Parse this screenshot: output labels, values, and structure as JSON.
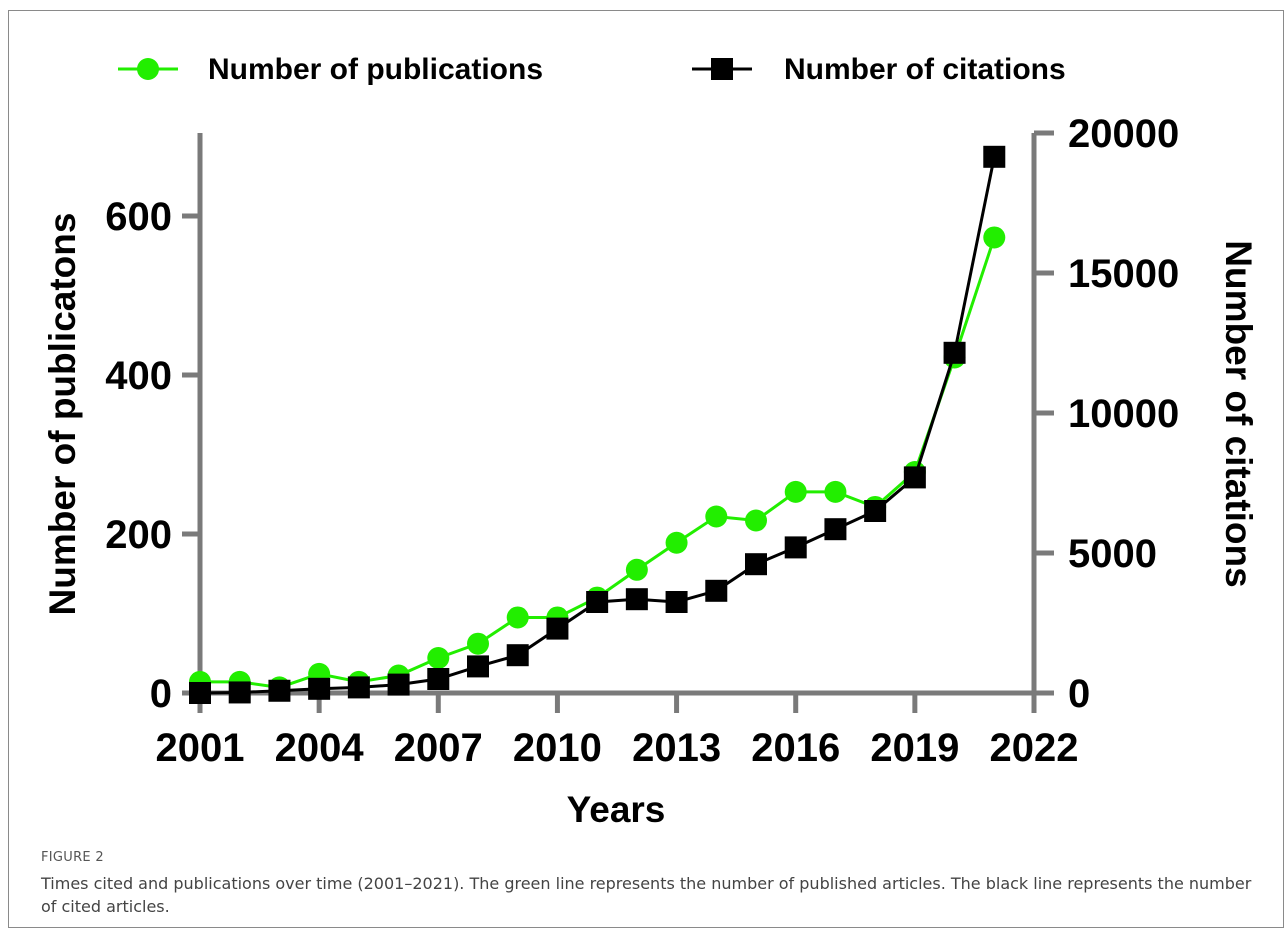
{
  "figure": {
    "label": "FIGURE 2",
    "caption": "Times cited and publications over time (2001–2021). The green line represents the number of published articles. The black line represents the number of cited articles."
  },
  "chart_data": {
    "type": "line",
    "title": "",
    "xlabel": "Years",
    "ylabel": "Number of  publicatons",
    "y2label": "Number of citations",
    "x": [
      2001,
      2002,
      2003,
      2004,
      2005,
      2006,
      2007,
      2008,
      2009,
      2010,
      2011,
      2012,
      2013,
      2014,
      2015,
      2016,
      2017,
      2018,
      2019,
      2020,
      2021
    ],
    "xlim": [
      2001,
      2022
    ],
    "xticks": [
      "2001",
      "2004",
      "2007",
      "2010",
      "2013",
      "2016",
      "2019",
      "2022"
    ],
    "ylim": [
      0,
      700
    ],
    "yticks": [
      "0",
      "200",
      "400",
      "600"
    ],
    "y2lim": [
      0,
      20000
    ],
    "y2ticks": [
      "0",
      "5000",
      "10000",
      "15000",
      "20000"
    ],
    "legend_position": "top",
    "grid": false,
    "series": [
      {
        "name": "Number of  publications",
        "axis": "left",
        "color": "#22ee00",
        "marker": "circle",
        "values": [
          14,
          14,
          7,
          24,
          14,
          22,
          44,
          62,
          95,
          95,
          120,
          155,
          189,
          222,
          217,
          253,
          253,
          234,
          278,
          422,
          573
        ]
      },
      {
        "name": "Number of  citations",
        "axis": "right",
        "color": "#000000",
        "marker": "square",
        "values": [
          0,
          20,
          80,
          150,
          200,
          300,
          500,
          950,
          1350,
          2300,
          3250,
          3350,
          3250,
          3650,
          4600,
          5200,
          5850,
          6500,
          7700,
          12150,
          19150
        ]
      }
    ]
  }
}
